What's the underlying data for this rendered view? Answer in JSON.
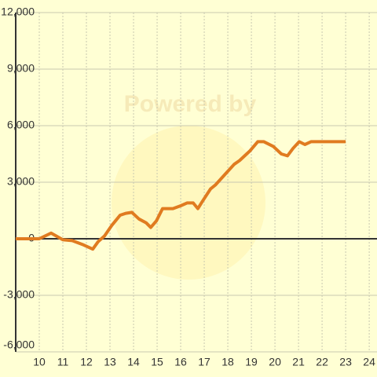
{
  "chart_data": {
    "type": "line",
    "watermark": "Powered by",
    "x": [
      9.0,
      10.0,
      10.5,
      11.0,
      11.4,
      11.83,
      12.27,
      12.5,
      12.77,
      13.07,
      13.43,
      13.67,
      13.93,
      14.23,
      14.53,
      14.73,
      14.97,
      15.23,
      15.67,
      16.0,
      16.27,
      16.53,
      16.73,
      16.93,
      17.27,
      17.47,
      17.87,
      18.27,
      18.5,
      18.93,
      19.27,
      19.53,
      19.93,
      20.27,
      20.53,
      20.77,
      21.03,
      21.27,
      21.53,
      23.0
    ],
    "series": [
      {
        "color": "#e07b20",
        "values": [
          0,
          0,
          300,
          -50,
          -100,
          -300,
          -550,
          -150,
          150,
          700,
          1250,
          1350,
          1400,
          1050,
          850,
          600,
          950,
          1600,
          1600,
          1750,
          1900,
          1900,
          1600,
          2000,
          2650,
          2850,
          3400,
          3950,
          4150,
          4650,
          5150,
          5150,
          4900,
          4500,
          4400,
          4800,
          5150,
          5000,
          5150,
          5150
        ]
      }
    ],
    "xlim": [
      9,
      24.33
    ],
    "xticks": [
      10,
      11,
      12,
      13,
      14,
      15,
      16,
      17,
      18,
      19,
      20,
      21,
      22,
      23,
      24
    ],
    "ylim": [
      -6000,
      12000
    ],
    "yticks": [
      {
        "value": -6000,
        "label": "-6,000"
      },
      {
        "value": -3000,
        "label": "-3,000"
      },
      0,
      {
        "value": 3000,
        "label": "3,000"
      },
      {
        "value": 6000,
        "label": "6,000"
      },
      {
        "value": 9000,
        "label": "9,000"
      },
      {
        "value": 12000,
        "label": "12,000"
      }
    ],
    "grid": true
  }
}
